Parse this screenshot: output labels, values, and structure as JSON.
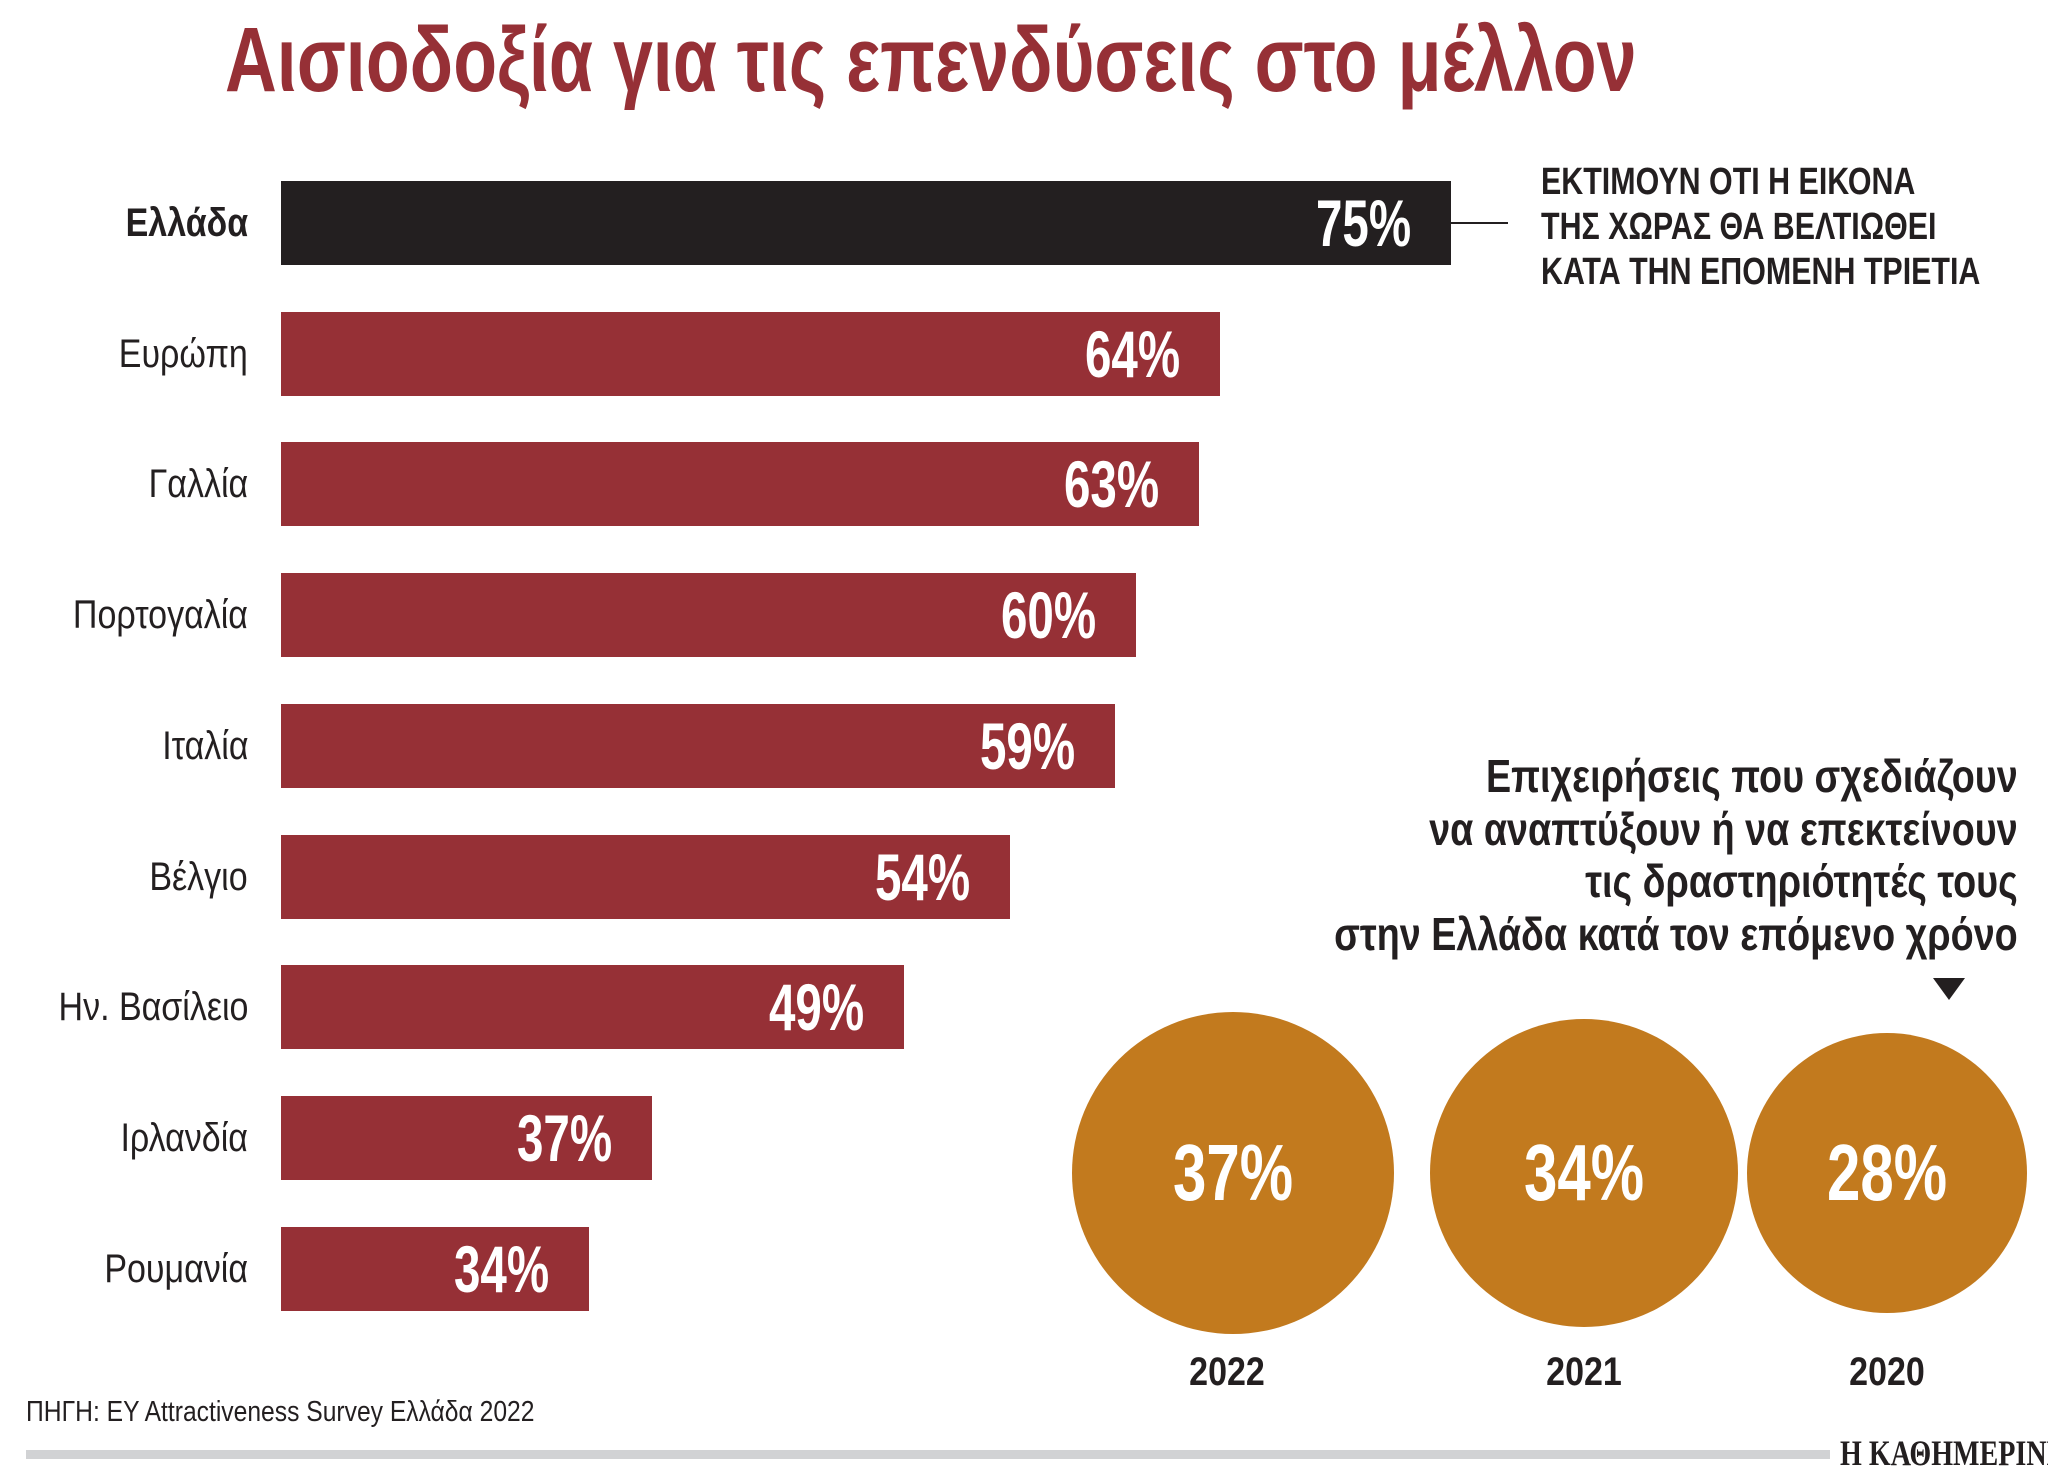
{
  "title": "Αισιοδοξία για τις επενδύσεις στο μέλλον",
  "colors": {
    "title": "#963036",
    "bar": "#963036",
    "highlight_bar": "#231f20",
    "circle": "#c27a1e",
    "text": "#231f20",
    "rule": "#d1d2d4"
  },
  "chart_data": [
    {
      "type": "bar",
      "orientation": "horizontal",
      "categories": [
        "Ελλάδα",
        "Ευρώπη",
        "Γαλλία",
        "Πορτογαλία",
        "Ιταλία",
        "Βέλγιο",
        "Ην. Βασίλειο",
        "Ιρλανδία",
        "Ρουμανία"
      ],
      "values": [
        75,
        64,
        63,
        60,
        59,
        54,
        49,
        37,
        34
      ],
      "labels": [
        "75%",
        "64%",
        "63%",
        "60%",
        "59%",
        "54%",
        "49%",
        "37%",
        "34%"
      ],
      "highlight": "Ελλάδα",
      "annotation": [
        "ΕΚΤΙΜΟΥΝ ΟΤΙ Η ΕΙΚΟΝΑ",
        "ΤΗΣ ΧΩΡΑΣ ΘΑ ΒΕΛΤΙΩΘΕΙ",
        "ΚΑΤΑ ΤΗΝ ΕΠΟΜΕΝΗ ΤΡΙΕΤΙΑ"
      ]
    },
    {
      "type": "bubble",
      "title_lines": [
        "Επιχειρήσεις που σχεδιάζουν",
        "να αναπτύξουν ή να επεκτείνουν",
        "τις δραστηριότητές τους",
        "στην Ελλάδα κατά τον επόμενο χρόνο"
      ],
      "categories": [
        "2022",
        "2021",
        "2020"
      ],
      "values": [
        37,
        34,
        28
      ],
      "labels": [
        "37%",
        "34%",
        "28%"
      ]
    }
  ],
  "source": "ΠΗΓΗ: EY Attractiveness Survey Ελλάδα 2022",
  "logo": "Η ΚΑΘΗΜΕΡΙΝΗ"
}
